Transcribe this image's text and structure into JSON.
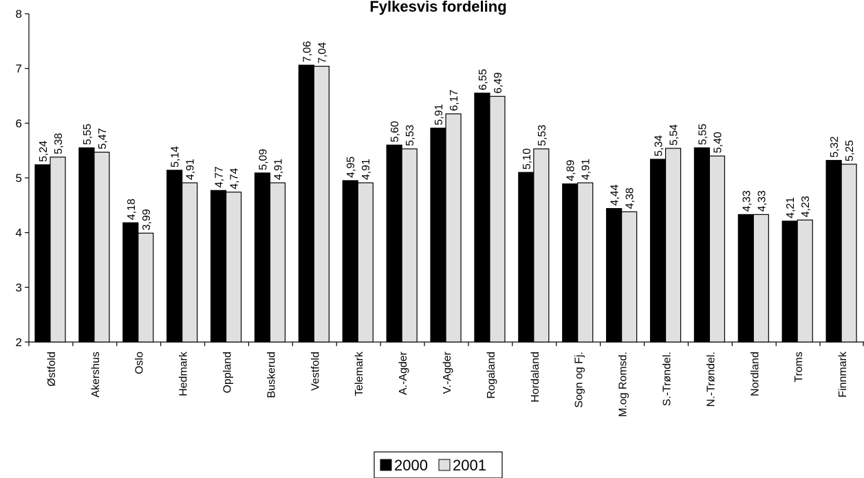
{
  "chart_data": {
    "type": "bar",
    "title": "Fylkesvis fordeling",
    "xlabel": "",
    "ylabel": "",
    "ylim": [
      2,
      8
    ],
    "yticks": [
      "2",
      "3",
      "4",
      "5",
      "6",
      "7",
      "8"
    ],
    "grid": false,
    "legend_position": "bottom-center",
    "categories": [
      "Østfold",
      "Akershus",
      "Oslo",
      "Hedmark",
      "Oppland",
      "Buskerud",
      "Vestfold",
      "Telemark",
      "A.-Agder",
      "V.-Agder",
      "Rogaland",
      "Hordaland",
      "Sogn og Fj.",
      "M.og Romsd.",
      "S.-Trøndel.",
      "N.-Trøndel.",
      "Nordland",
      "Troms",
      "Finnmark"
    ],
    "series": [
      {
        "name": "2000",
        "color": "#000000",
        "values": [
          5.24,
          5.55,
          4.18,
          5.14,
          4.77,
          5.09,
          7.06,
          4.95,
          5.6,
          5.91,
          6.55,
          5.1,
          4.89,
          4.44,
          5.34,
          5.55,
          4.33,
          4.21,
          5.32
        ],
        "labels": [
          "5,24",
          "5,55",
          "4,18",
          "5,14",
          "4,77",
          "5,09",
          "7,06",
          "4,95",
          "5,60",
          "5,91",
          "6,55",
          "5,10",
          "4,89",
          "4,44",
          "5,34",
          "5,55",
          "4,33",
          "4,21",
          "5,32"
        ]
      },
      {
        "name": "2001",
        "color": "#e0e0e0",
        "values": [
          5.38,
          5.47,
          3.99,
          4.91,
          4.74,
          4.91,
          7.04,
          4.91,
          5.53,
          6.17,
          6.49,
          5.53,
          4.91,
          4.38,
          5.54,
          5.4,
          4.33,
          4.23,
          5.25
        ],
        "labels": [
          "5,38",
          "5,47",
          "3,99",
          "4,91",
          "4,74",
          "4,91",
          "7,04",
          "4,91",
          "5,53",
          "6,17",
          "6,49",
          "5,53",
          "4,91",
          "4,38",
          "5,54",
          "5,40",
          "4,33",
          "4,23",
          "5,25"
        ]
      }
    ]
  }
}
